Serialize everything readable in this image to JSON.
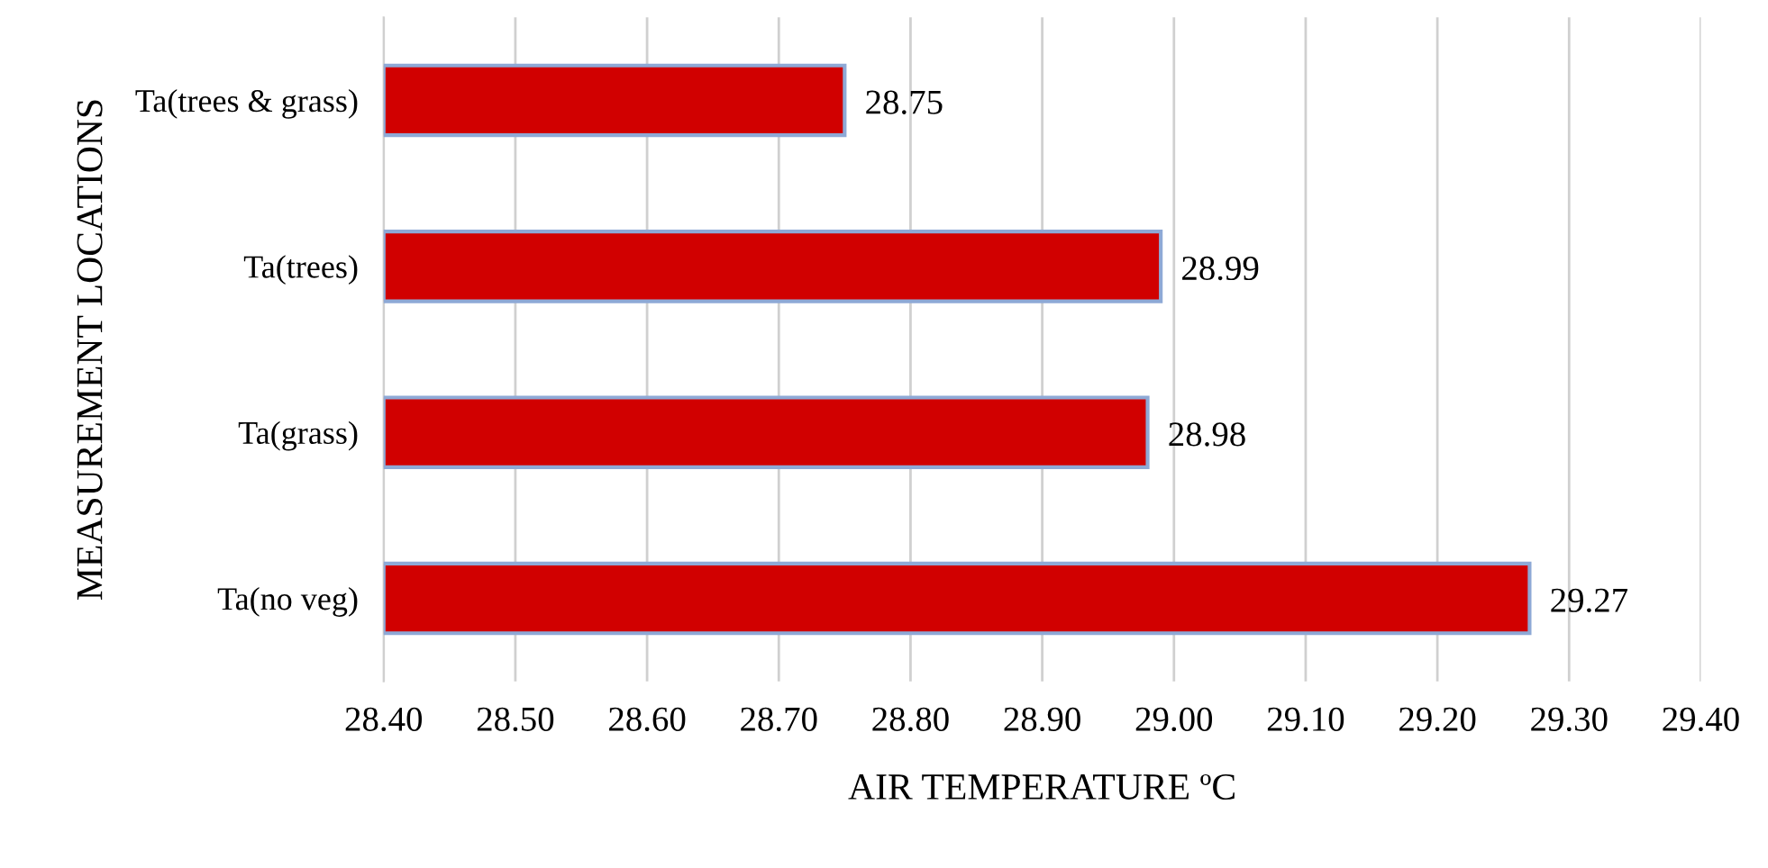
{
  "chart_data": {
    "type": "bar",
    "orientation": "horizontal",
    "xlabel": "AIR TEMPERATURE ºC",
    "ylabel": "MEASUREMENT LOCATIONS",
    "categories": [
      "Ta(trees & grass)",
      "Ta(trees)",
      "Ta(grass)",
      "Ta(no veg)"
    ],
    "values": [
      28.75,
      28.99,
      28.98,
      29.27
    ],
    "color": "#d10000",
    "xlim": [
      28.4,
      29.4
    ],
    "xticks": [
      {
        "value": 28.4,
        "label": "28.40"
      },
      {
        "value": 28.5,
        "label": "28.50"
      },
      {
        "value": 28.6,
        "label": "28.60"
      },
      {
        "value": 28.7,
        "label": "28.70"
      },
      {
        "value": 28.8,
        "label": "28.80"
      },
      {
        "value": 28.9,
        "label": "28.90"
      },
      {
        "value": 29.0,
        "label": "29.00"
      },
      {
        "value": 29.1,
        "label": "29.10"
      },
      {
        "value": 29.2,
        "label": "29.20"
      },
      {
        "value": 29.3,
        "label": "29.30"
      },
      {
        "value": 29.4,
        "label": "29.40"
      }
    ],
    "grid": "x",
    "data_labels": true
  }
}
